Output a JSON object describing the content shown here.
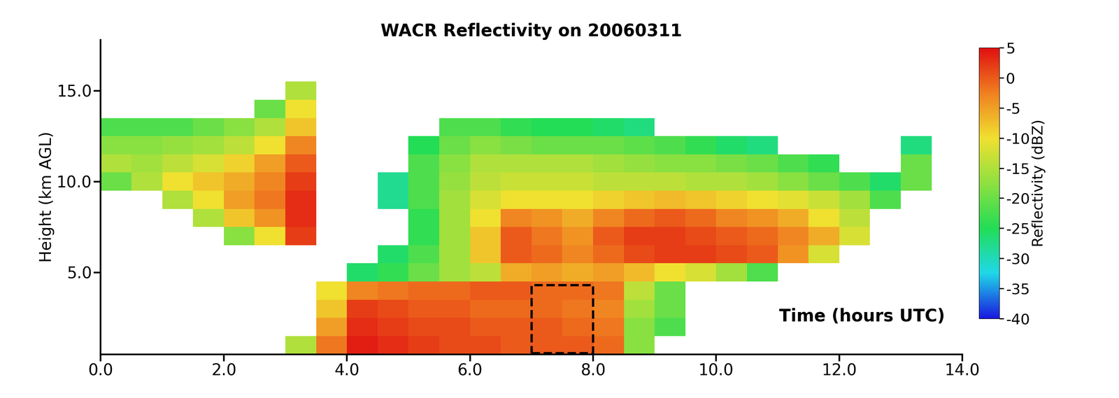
{
  "chart_data": {
    "type": "heatmap",
    "title": "WACR Reflectivity on 20060311",
    "x_label": "Time (hours UTC)",
    "y_label": "Height (km AGL)",
    "x_edges": [
      0.0,
      0.5,
      1.0,
      1.5,
      2.0,
      2.5,
      3.0,
      3.5,
      4.0,
      4.5,
      5.0,
      5.5,
      6.0,
      6.5,
      7.0,
      7.5,
      8.0,
      8.5,
      9.0,
      9.5,
      10.0,
      10.5,
      11.0,
      11.5,
      12.0,
      12.5,
      13.0,
      13.5,
      14.0
    ],
    "y_edges": [
      0.5,
      1.5,
      2.5,
      3.5,
      4.5,
      5.5,
      6.5,
      7.5,
      8.5,
      9.5,
      10.5,
      11.5,
      12.5,
      13.5,
      14.5,
      15.5,
      16.5,
      17.5
    ],
    "cells": [
      [
        null,
        null,
        null,
        null,
        null,
        null,
        -15,
        -2,
        4,
        3,
        2,
        1,
        1,
        0,
        0,
        0,
        -1,
        -18,
        null,
        null,
        null,
        null,
        null,
        null,
        null,
        null,
        null,
        null
      ],
      [
        null,
        null,
        null,
        null,
        null,
        null,
        null,
        -5,
        3,
        2,
        1,
        1,
        0,
        0,
        0,
        -1,
        -2,
        -18,
        -22,
        null,
        null,
        null,
        null,
        null,
        null,
        null,
        null,
        null
      ],
      [
        null,
        null,
        null,
        null,
        null,
        null,
        null,
        -8,
        2,
        1,
        0,
        0,
        -1,
        -1,
        -1,
        -2,
        -3,
        -16,
        -20,
        null,
        null,
        null,
        null,
        null,
        null,
        null,
        null,
        null
      ],
      [
        null,
        null,
        null,
        null,
        null,
        null,
        null,
        -10,
        -3,
        -2,
        -1,
        -1,
        0,
        0,
        -1,
        -1,
        -2,
        -14,
        -20,
        null,
        null,
        null,
        null,
        null,
        null,
        null,
        null,
        null
      ],
      [
        null,
        null,
        null,
        null,
        null,
        null,
        null,
        null,
        -26,
        -24,
        -20,
        -16,
        -14,
        -6,
        -5,
        -6,
        -5,
        -7,
        -10,
        -12,
        -16,
        -22,
        null,
        null,
        null,
        null,
        null,
        null
      ],
      [
        null,
        null,
        null,
        null,
        null,
        null,
        null,
        null,
        null,
        -26,
        -22,
        -16,
        -8,
        0,
        -1,
        -3,
        -1,
        1,
        2,
        2,
        1,
        0,
        -4,
        -12,
        null,
        null,
        null,
        null
      ],
      [
        null,
        null,
        null,
        null,
        -18,
        -10,
        2,
        null,
        null,
        null,
        -24,
        -16,
        -8,
        0,
        -2,
        -4,
        0,
        2,
        2,
        1,
        0,
        -1,
        -3,
        -6,
        -12,
        null,
        null,
        null
      ],
      [
        null,
        null,
        null,
        -15,
        -8,
        -4,
        3,
        null,
        null,
        null,
        -24,
        -16,
        -10,
        -3,
        -4,
        -6,
        -3,
        -1,
        0,
        -1,
        -3,
        -4,
        -6,
        -10,
        -14,
        null,
        null,
        null
      ],
      [
        null,
        null,
        -15,
        -10,
        -5,
        -2,
        3,
        null,
        null,
        -28,
        -22,
        -16,
        -12,
        -10,
        -10,
        -10,
        -9,
        -8,
        -7,
        -8,
        -9,
        -10,
        -11,
        -13,
        -16,
        -22,
        null,
        null
      ],
      [
        -20,
        -15,
        -10,
        -8,
        -6,
        -3,
        2,
        null,
        null,
        -28,
        -22,
        -17,
        -14,
        -13,
        -13,
        -13,
        -14,
        -14,
        -14,
        -15,
        -15,
        -16,
        -18,
        -20,
        -22,
        -26,
        -20,
        null
      ],
      [
        -15,
        -16,
        -14,
        -12,
        -9,
        -5,
        0,
        null,
        null,
        null,
        -22,
        -18,
        -15,
        -15,
        -15,
        -15,
        -16,
        -17,
        -18,
        -18,
        -19,
        -20,
        -22,
        -24,
        null,
        null,
        -20,
        null
      ],
      [
        -18,
        -18,
        -17,
        -16,
        -14,
        -10,
        -3,
        null,
        null,
        null,
        -25,
        -20,
        -18,
        -19,
        -20,
        -20,
        -20,
        -21,
        -22,
        -24,
        -26,
        -27,
        null,
        null,
        null,
        null,
        -27,
        null
      ],
      [
        -22,
        -22,
        -22,
        -20,
        -18,
        -15,
        -8,
        null,
        null,
        null,
        null,
        -22,
        -22,
        -24,
        -25,
        -25,
        -26,
        -27,
        null,
        null,
        null,
        null,
        null,
        null,
        null,
        null,
        null,
        null
      ],
      [
        null,
        null,
        null,
        null,
        null,
        -20,
        -10,
        null,
        null,
        null,
        null,
        null,
        null,
        null,
        null,
        null,
        null,
        null,
        null,
        null,
        null,
        null,
        null,
        null,
        null,
        null,
        null,
        null
      ],
      [
        null,
        null,
        null,
        null,
        null,
        null,
        -15,
        null,
        null,
        null,
        null,
        null,
        null,
        null,
        null,
        null,
        null,
        null,
        null,
        null,
        null,
        null,
        null,
        null,
        null,
        null,
        null,
        null
      ],
      [
        null,
        null,
        null,
        null,
        null,
        null,
        null,
        null,
        null,
        null,
        null,
        null,
        null,
        null,
        null,
        null,
        null,
        null,
        null,
        null,
        null,
        null,
        null,
        null,
        null,
        null,
        null,
        null
      ],
      [
        null,
        null,
        null,
        null,
        null,
        null,
        null,
        null,
        null,
        null,
        null,
        null,
        null,
        null,
        null,
        null,
        null,
        null,
        null,
        null,
        null,
        null,
        null,
        null,
        null,
        null,
        null,
        null
      ]
    ],
    "xlim": [
      0.0,
      14.0
    ],
    "ylim": [
      0.5,
      17.8
    ],
    "xticks": [
      {
        "value": 0,
        "label": "0.0"
      },
      {
        "value": 2,
        "label": "2.0"
      },
      {
        "value": 4,
        "label": "4.0"
      },
      {
        "value": 6,
        "label": "6.0"
      },
      {
        "value": 8,
        "label": "8.0"
      },
      {
        "value": 10,
        "label": "10.0"
      },
      {
        "value": 12,
        "label": "12.0"
      },
      {
        "value": 14,
        "label": "14.0"
      }
    ],
    "yticks": [
      {
        "value": 5,
        "label": "5.0"
      },
      {
        "value": 10,
        "label": "10.0"
      },
      {
        "value": 15,
        "label": "15.0"
      }
    ],
    "colorbar": {
      "label": "Reflectivity (dBZ)",
      "range": [
        -40,
        5
      ],
      "ticks": [
        5,
        0,
        -5,
        -10,
        -15,
        -20,
        -25,
        -30,
        -35,
        -40
      ]
    },
    "highlight": {
      "x": [
        7.0,
        8.0
      ],
      "y": [
        0.55,
        4.3
      ]
    }
  }
}
